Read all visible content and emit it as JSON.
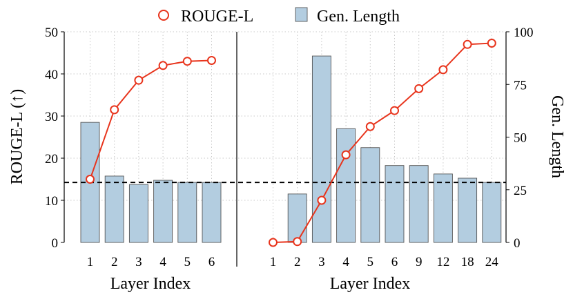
{
  "chart_data": {
    "type": "bar+line",
    "legend": {
      "placement": "top-center",
      "items": [
        {
          "label": "ROUGE-L",
          "marker": "line-circle"
        },
        {
          "label": "Gen. Length",
          "marker": "bar"
        }
      ]
    },
    "colors": {
      "rouge": "#e8341c",
      "bar_fill": "#b3cde0",
      "bar_edge": "#555555",
      "reference_line": "#000000"
    },
    "ylabel_left": "ROUGE-L (↑)",
    "ylabel_right": "Gen. Length",
    "ylim_left": [
      0,
      50
    ],
    "ylim_right": [
      0,
      100
    ],
    "yticks_left": [
      "0",
      "10",
      "20",
      "30",
      "40",
      "50"
    ],
    "yticks_right": [
      "0",
      "25",
      "50",
      "75",
      "100"
    ],
    "grid": true,
    "reference_line": {
      "style": "dashed",
      "y_right": 28.5
    },
    "panels": [
      {
        "xlabel": "Layer Index",
        "categories": [
          "1",
          "2",
          "3",
          "4",
          "5",
          "6"
        ],
        "series": [
          {
            "name": "Gen. Length",
            "axis": "right",
            "type": "bar",
            "values": [
              57,
              31.5,
              27.5,
              29.5,
              28.5,
              28.5
            ]
          },
          {
            "name": "ROUGE-L",
            "axis": "left",
            "type": "line",
            "values": [
              15,
              31.5,
              38.5,
              42,
              43,
              43.2
            ]
          }
        ]
      },
      {
        "xlabel": "Layer Index",
        "categories": [
          "1",
          "2",
          "3",
          "4",
          "5",
          "6",
          "9",
          "12",
          "18",
          "24"
        ],
        "series": [
          {
            "name": "Gen. Length",
            "axis": "right",
            "type": "bar",
            "values": [
              0,
              23,
              88.5,
              54,
              45,
              36.5,
              36.5,
              32.5,
              30.5,
              28.5
            ]
          },
          {
            "name": "ROUGE-L",
            "axis": "left",
            "type": "line",
            "values": [
              0,
              0.2,
              10,
              20.8,
              27.5,
              31.3,
              36.5,
              41,
              47,
              47.3
            ]
          }
        ]
      }
    ]
  }
}
